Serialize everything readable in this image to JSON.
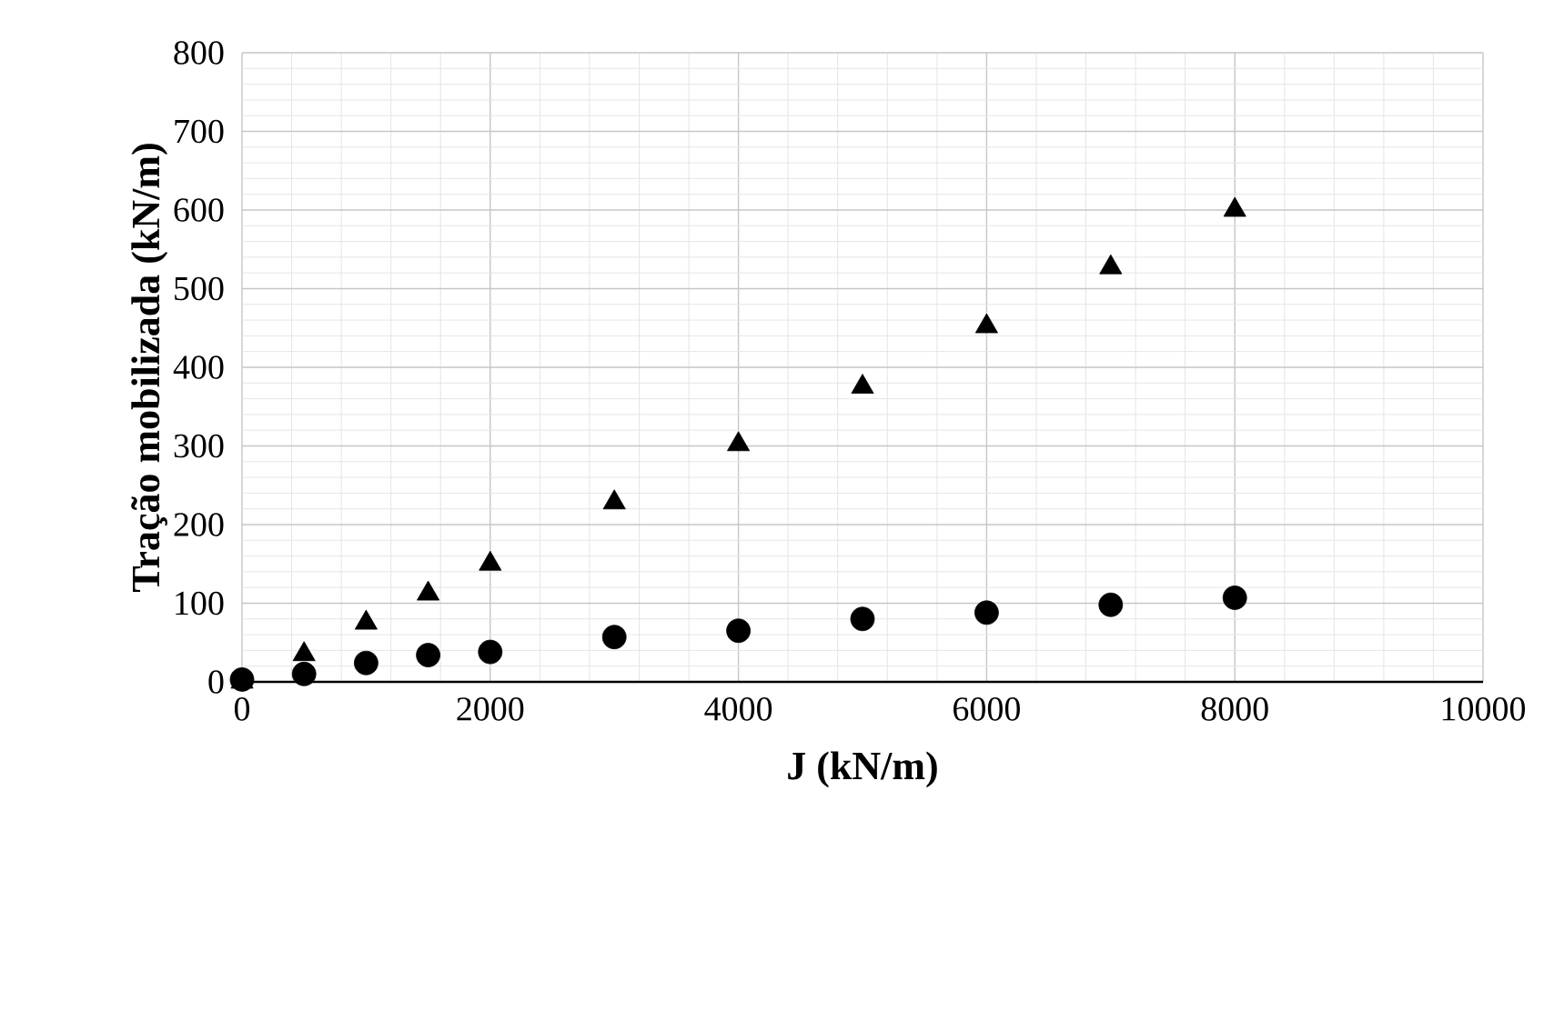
{
  "chart_data": {
    "type": "scatter",
    "xlabel": "J (kN/m)",
    "ylabel": "Tração mobilizada (kN/m)",
    "xlim": [
      0,
      10000
    ],
    "xticks": [
      0,
      2000,
      4000,
      6000,
      8000,
      10000
    ],
    "ylim": [
      0,
      800
    ],
    "yticks": [
      0,
      100,
      200,
      300,
      400,
      500,
      600,
      700,
      800
    ],
    "grid": true,
    "series": [
      {
        "color": "#000000",
        "marker": "circle",
        "x": [
          0,
          500,
          1000,
          1500,
          2000,
          3000,
          4000,
          5000,
          6000,
          7000,
          8000
        ],
        "values": [
          3,
          10,
          24,
          34,
          38,
          57,
          65,
          80,
          88,
          98,
          107
        ]
      },
      {
        "color": "#000000",
        "marker": "triangle",
        "x": [
          0,
          500,
          1000,
          1500,
          2000,
          3000,
          4000,
          5000,
          6000,
          7000,
          8000
        ],
        "values": [
          0,
          35,
          75,
          112,
          150,
          228,
          302,
          375,
          452,
          527,
          600
        ]
      }
    ]
  }
}
